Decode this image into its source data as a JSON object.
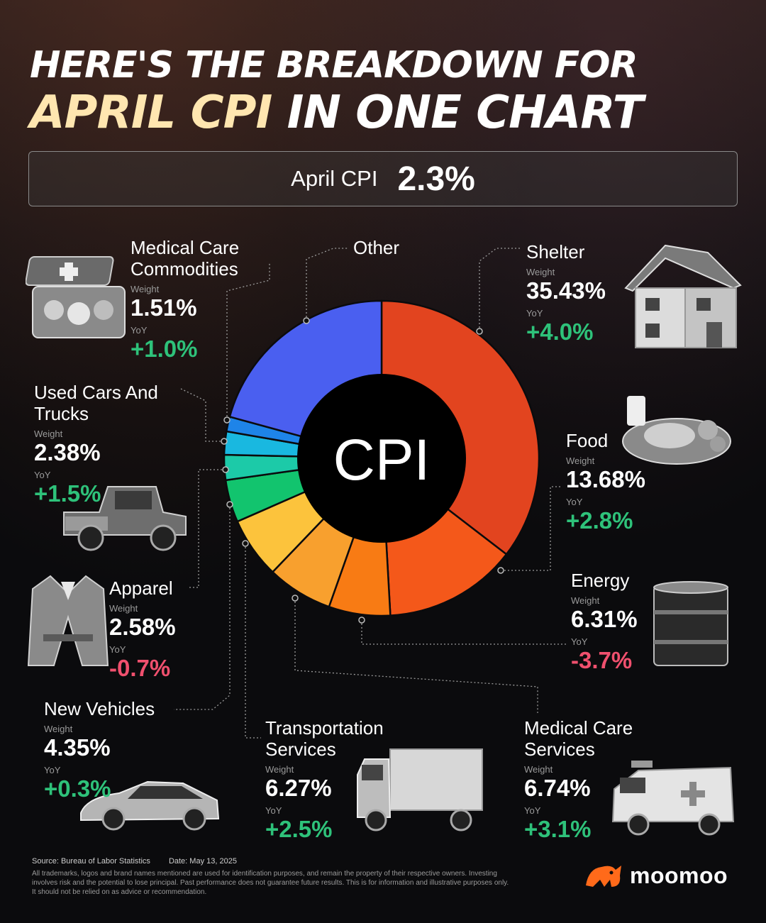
{
  "title": {
    "line1": "HERE'S THE BREAKDOWN FOR",
    "line2_highlight": "APRIL CPI",
    "line2_rest": " IN ONE CHART"
  },
  "summary": {
    "label": "April CPI",
    "value": "2.3%"
  },
  "chart_data": {
    "type": "pie",
    "center_label": "CPI",
    "weight_label": "Weight",
    "yoy_label": "YoY",
    "slices": [
      {
        "name": "Shelter",
        "weight": 35.43,
        "weight_text": "35.43%",
        "yoy": 4.0,
        "yoy_text": "+4.0%",
        "color": "#e2441f"
      },
      {
        "name": "Food",
        "weight": 13.68,
        "weight_text": "13.68%",
        "yoy": 2.8,
        "yoy_text": "+2.8%",
        "color": "#f4581a"
      },
      {
        "name": "Energy",
        "weight": 6.31,
        "weight_text": "6.31%",
        "yoy": -3.7,
        "yoy_text": "-3.7%",
        "color": "#f87b14"
      },
      {
        "name": "Medical Care Services",
        "weight": 6.74,
        "weight_text": "6.74%",
        "yoy": 3.1,
        "yoy_text": "+3.1%",
        "color": "#f8a02e"
      },
      {
        "name": "Transportation Services",
        "weight": 6.27,
        "weight_text": "6.27%",
        "yoy": 2.5,
        "yoy_text": "+2.5%",
        "color": "#fcc33c"
      },
      {
        "name": "New Vehicles",
        "weight": 4.35,
        "weight_text": "4.35%",
        "yoy": 0.3,
        "yoy_text": "+0.3%",
        "color": "#12c46e"
      },
      {
        "name": "Apparel",
        "weight": 2.58,
        "weight_text": "2.58%",
        "yoy": -0.7,
        "yoy_text": "-0.7%",
        "color": "#1ccaa8"
      },
      {
        "name": "Used Cars And Trucks",
        "weight": 2.38,
        "weight_text": "2.38%",
        "yoy": 1.5,
        "yoy_text": "+1.5%",
        "color": "#19b8e0"
      },
      {
        "name": "Medical Care Commodities",
        "weight": 1.51,
        "weight_text": "1.51%",
        "yoy": 1.0,
        "yoy_text": "+1.0%",
        "color": "#1e84e8"
      },
      {
        "name": "Other",
        "weight": 20.75,
        "color": "#4a5ff0"
      }
    ]
  },
  "labels": {
    "shelter": {
      "name": "Shelter",
      "weight": "35.43%",
      "yoy": "+4.0%"
    },
    "food": {
      "name": "Food",
      "weight": "13.68%",
      "yoy": "+2.8%"
    },
    "energy": {
      "name": "Energy",
      "weight": "6.31%",
      "yoy": "-3.7%"
    },
    "medical_services": {
      "name1": "Medical Care",
      "name2": "Services",
      "weight": "6.74%",
      "yoy": "+3.1%"
    },
    "transportation": {
      "name1": "Transportation",
      "name2": "Services",
      "weight": "6.27%",
      "yoy": "+2.5%"
    },
    "new_vehicles": {
      "name": "New Vehicles",
      "weight": "4.35%",
      "yoy": "+0.3%"
    },
    "apparel": {
      "name": "Apparel",
      "weight": "2.58%",
      "yoy": "-0.7%"
    },
    "used_cars": {
      "name1": "Used Cars And",
      "name2": "Trucks",
      "weight": "2.38%",
      "yoy": "+1.5%"
    },
    "medical_commodities": {
      "name1": "Medical Care",
      "name2": "Commodities",
      "weight": "1.51%",
      "yoy": "+1.0%"
    },
    "other": {
      "name": "Other"
    },
    "weight_label": "Weight",
    "yoy_label": "YoY"
  },
  "icons": [
    "first-aid-kit-icon",
    "pickup-truck-icon",
    "blazer-icon",
    "sports-car-icon",
    "house-icon",
    "food-plate-icon",
    "oil-barrel-icon",
    "delivery-truck-icon",
    "ambulance-icon",
    "moomoo-logo-icon"
  ],
  "footer": {
    "source": "Source: Bureau of Labor Statistics",
    "date": "Date: May 13, 2025",
    "disclaimer": "All trademarks, logos and brand names mentioned are used for identification purposes, and remain the property of their respective owners. Investing involves risk and the potential to lose principal. Past performance does not guarantee future results. This is for information and illustrative purposes only. It should not be relied on as advice or recommendation."
  },
  "brand": {
    "name": "moomoo",
    "color": "#ff6a1a"
  }
}
